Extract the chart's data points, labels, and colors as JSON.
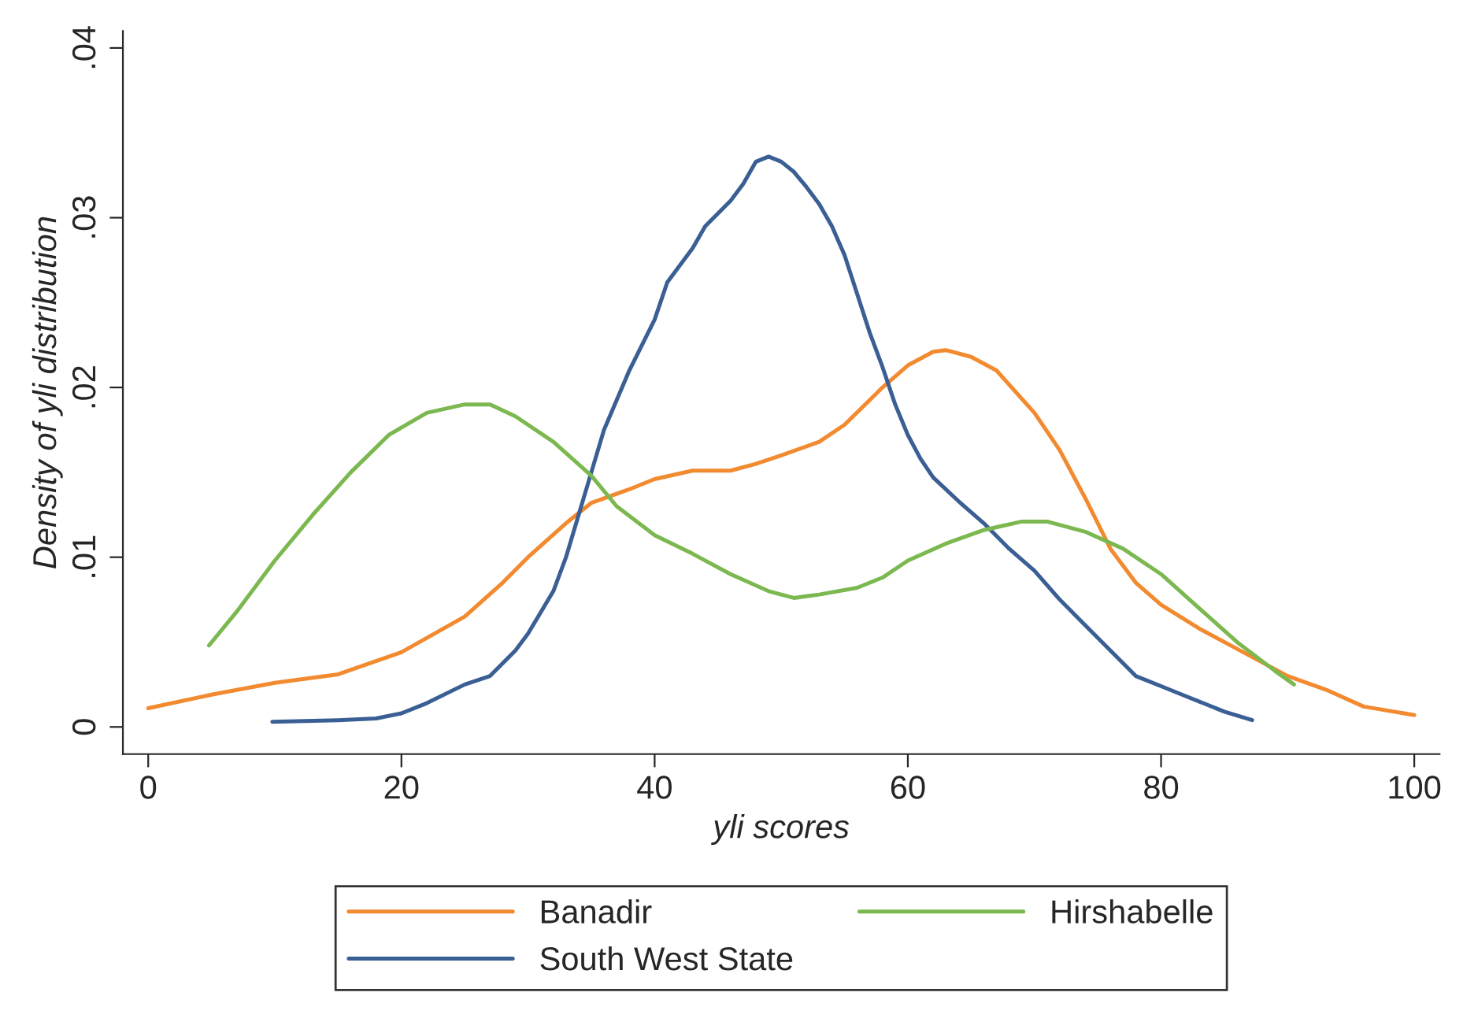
{
  "chart_data": {
    "type": "line",
    "xlabel": "yli scores",
    "ylabel": "Density of yli distribution",
    "xlim": [
      -2,
      102
    ],
    "xticks": [
      0,
      20,
      40,
      60,
      80,
      100
    ],
    "ylim": [
      -0.0016,
      0.041
    ],
    "yticks": [
      {
        "value": 0,
        "label": "0"
      },
      {
        "value": 0.01,
        "label": ".01"
      },
      {
        "value": 0.02,
        "label": ".02"
      },
      {
        "value": 0.03,
        "label": ".03"
      },
      {
        "value": 0.04,
        "label": ".04"
      }
    ],
    "grid": false,
    "legend": "bottom",
    "marker": "none",
    "line_style": "solid",
    "series": [
      {
        "name": "Banadir",
        "color": "#f28a30",
        "x": [
          0,
          5,
          10,
          15,
          20,
          25,
          28,
          30,
          33,
          35,
          38,
          40,
          43,
          46,
          48,
          50,
          53,
          55,
          58,
          60,
          62,
          63,
          65,
          67,
          70,
          72,
          74,
          76,
          78,
          80,
          83,
          86,
          88,
          90,
          93,
          96,
          100
        ],
        "values": [
          0.0011,
          0.0019,
          0.0026,
          0.0031,
          0.0044,
          0.0065,
          0.0085,
          0.01,
          0.012,
          0.0132,
          0.014,
          0.0146,
          0.0151,
          0.0151,
          0.0155,
          0.016,
          0.0168,
          0.0178,
          0.02,
          0.0213,
          0.0221,
          0.0222,
          0.0218,
          0.021,
          0.0185,
          0.0163,
          0.0135,
          0.0105,
          0.0085,
          0.0072,
          0.0058,
          0.0046,
          0.0038,
          0.003,
          0.0022,
          0.0012,
          0.0007
        ]
      },
      {
        "name": "South West State",
        "color": "#3a5f94",
        "x": [
          9.8,
          15,
          18,
          20,
          22,
          25,
          27,
          29,
          30,
          32,
          33,
          34,
          35,
          36,
          38,
          40,
          41,
          43,
          44,
          46,
          47,
          48,
          49,
          50,
          51,
          52,
          53,
          54,
          55,
          56,
          57,
          58,
          59,
          60,
          61,
          62,
          64,
          66,
          68,
          70,
          72,
          74,
          76,
          78,
          80,
          82,
          85,
          87.2
        ],
        "values": [
          0.0003,
          0.0004,
          0.0005,
          0.0008,
          0.0014,
          0.0025,
          0.003,
          0.0045,
          0.0055,
          0.008,
          0.01,
          0.0125,
          0.015,
          0.0175,
          0.021,
          0.024,
          0.0262,
          0.0282,
          0.0295,
          0.031,
          0.032,
          0.0333,
          0.0336,
          0.0333,
          0.0327,
          0.0318,
          0.0308,
          0.0295,
          0.0278,
          0.0255,
          0.0232,
          0.0212,
          0.019,
          0.0172,
          0.0158,
          0.0147,
          0.0133,
          0.012,
          0.0105,
          0.0092,
          0.0075,
          0.006,
          0.0045,
          0.003,
          0.0024,
          0.0018,
          0.0009,
          0.0004
        ]
      },
      {
        "name": "Hirshabelle",
        "color": "#7cb850",
        "x": [
          4.8,
          7,
          10,
          13,
          16,
          19,
          22,
          25,
          27,
          29,
          32,
          35,
          37,
          40,
          43,
          46,
          49,
          51,
          53,
          56,
          58,
          60,
          63,
          66,
          69,
          71,
          74,
          77,
          80,
          83,
          86,
          89,
          90.5
        ],
        "values": [
          0.0048,
          0.0068,
          0.0098,
          0.0125,
          0.015,
          0.0172,
          0.0185,
          0.019,
          0.019,
          0.0183,
          0.0168,
          0.0148,
          0.013,
          0.0113,
          0.0102,
          0.009,
          0.008,
          0.0076,
          0.0078,
          0.0082,
          0.0088,
          0.0098,
          0.0108,
          0.0116,
          0.0121,
          0.0121,
          0.0115,
          0.0105,
          0.009,
          0.007,
          0.005,
          0.0033,
          0.0025
        ]
      }
    ]
  }
}
